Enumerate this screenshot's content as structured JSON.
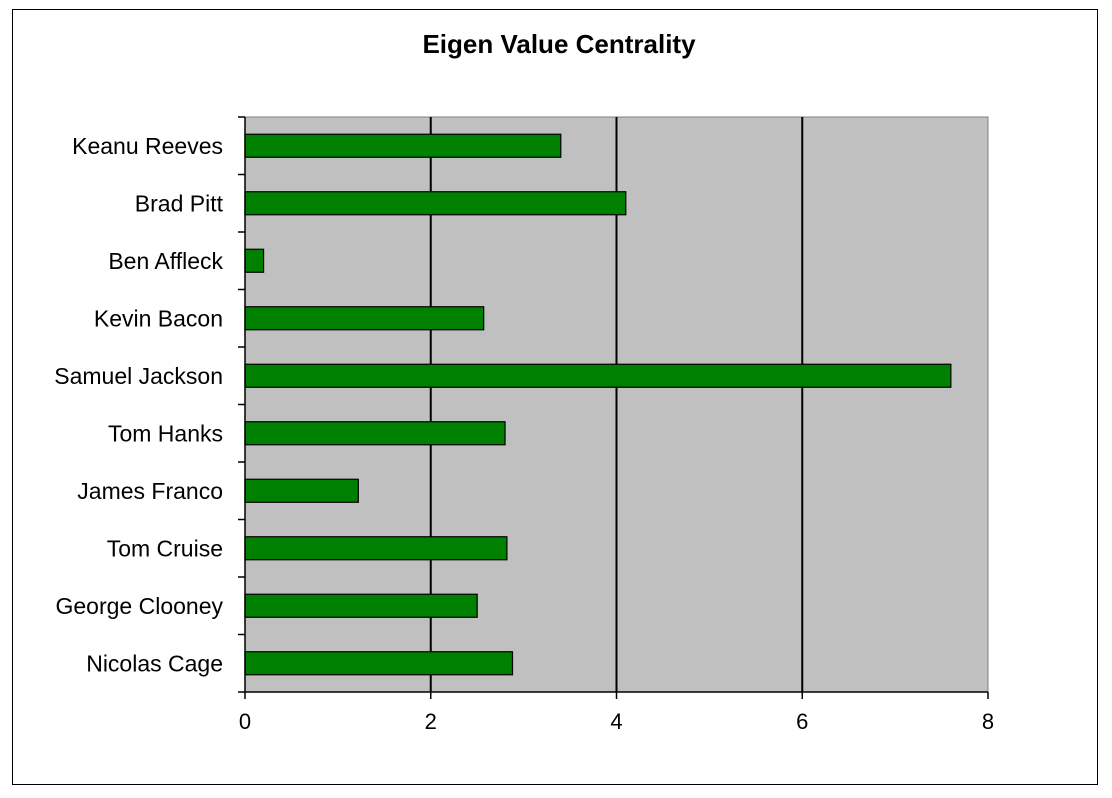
{
  "chart_data": {
    "type": "bar",
    "orientation": "horizontal",
    "title": "Eigen Value Centrality",
    "xlabel": "",
    "ylabel": "",
    "categories": [
      "Keanu Reeves",
      "Brad Pitt",
      "Ben Affleck",
      "Kevin Bacon",
      "Samuel Jackson",
      "Tom Hanks",
      "James Franco",
      "Tom Cruise",
      "George Clooney",
      "Nicolas Cage"
    ],
    "values": [
      3.4,
      4.1,
      0.2,
      2.57,
      7.6,
      2.8,
      1.22,
      2.82,
      2.5,
      2.88
    ],
    "xlim": [
      0,
      8
    ],
    "xticks": [
      "0",
      "2",
      "4",
      "6",
      "8"
    ],
    "grid": "vertical",
    "legend": "none",
    "colors": {
      "bar": "#008000",
      "plot_background": "#c0c0c0",
      "gridline": "#000000"
    }
  }
}
